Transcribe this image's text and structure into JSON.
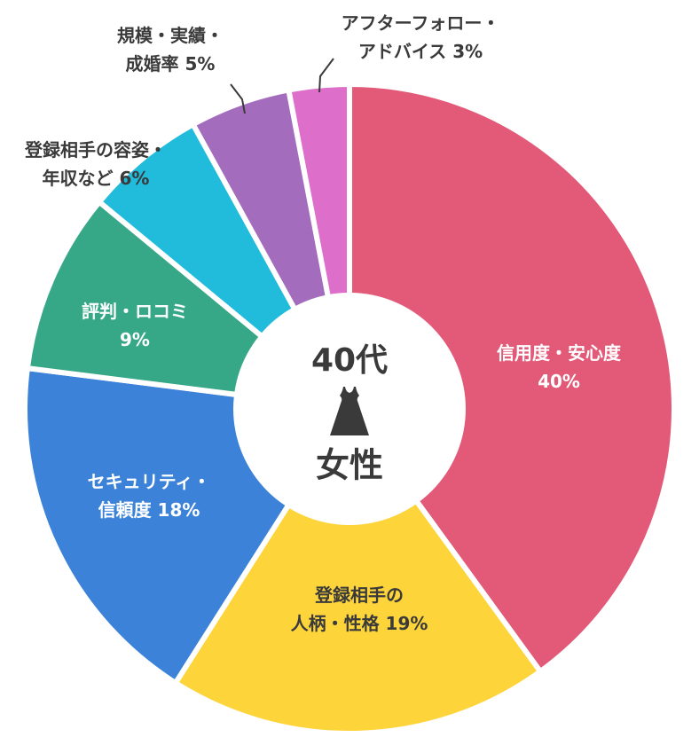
{
  "chart_data": {
    "type": "pie",
    "center": {
      "line1": "40代",
      "line2": "女性",
      "icon": "dress-icon"
    },
    "slices": [
      {
        "lines": [
          "信用度・安心度",
          "40%"
        ],
        "value": 40,
        "color": "#e25a78",
        "label_color": "#ffffff"
      },
      {
        "lines": [
          "登録相手の",
          "人柄・性格 19%"
        ],
        "value": 19,
        "color": "#fdd43a",
        "label_color": "#3a3a3a"
      },
      {
        "lines": [
          "セキュリティ・",
          "信頼度 18%"
        ],
        "value": 18,
        "color": "#3b82d8",
        "label_color": "#ffffff"
      },
      {
        "lines": [
          "評判・ロコミ",
          "9%"
        ],
        "value": 9,
        "color": "#36a887",
        "label_color": "#ffffff"
      },
      {
        "lines": [
          "登録相手の容姿・",
          "年収など 6%"
        ],
        "value": 6,
        "color": "#21bbdc",
        "label_color": "#3a3a3a"
      },
      {
        "lines": [
          "規模・実績・",
          "成婚率 5%"
        ],
        "value": 5,
        "color": "#a46cbd",
        "label_color": "#3a3a3a"
      },
      {
        "lines": [
          "アフターフォロー・",
          "アドバイス 3%"
        ],
        "value": 3,
        "color": "#dd6ec9",
        "label_color": "#3a3a3a"
      }
    ]
  }
}
